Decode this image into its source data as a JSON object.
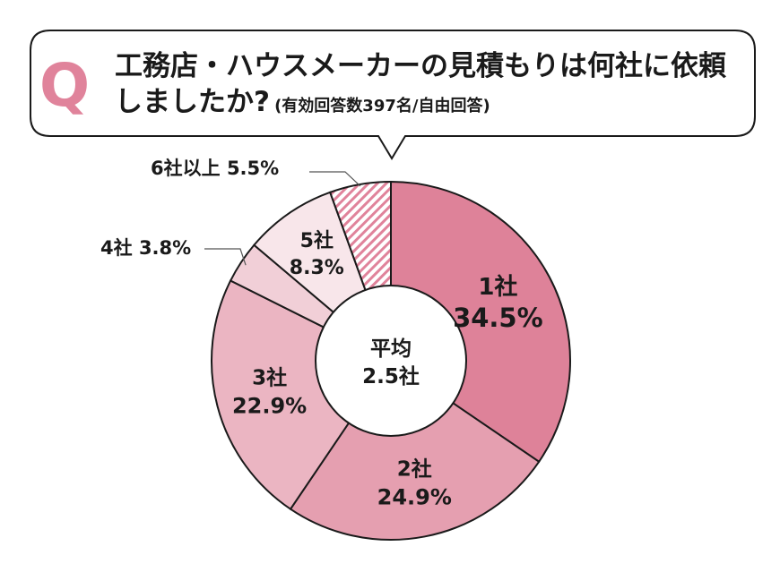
{
  "question": {
    "marker": "Q",
    "line1": "工務店・ハウスメーカーの見積もりは何社に依頼",
    "line2": "しましたか?",
    "note": "(有効回答数397名/自由回答)"
  },
  "center": {
    "label": "平均",
    "value": "2.5社"
  },
  "colors": {
    "marker": "#e0839b",
    "outline": "#1a1a1a"
  },
  "chart_data": {
    "type": "pie",
    "unit": "%",
    "slices": [
      {
        "label": "1社",
        "value": 34.5,
        "value_text": "34.5%",
        "color": "#de8299",
        "pattern": "none"
      },
      {
        "label": "2社",
        "value": 24.9,
        "value_text": "24.9%",
        "color": "#e59fb0",
        "pattern": "none"
      },
      {
        "label": "3社",
        "value": 22.9,
        "value_text": "22.9%",
        "color": "#ebb5c2",
        "pattern": "none"
      },
      {
        "label": "4社",
        "value": 3.8,
        "value_text": "3.8%",
        "color": "#f1cfd7",
        "pattern": "none"
      },
      {
        "label": "5社",
        "value": 8.3,
        "value_text": "8.3%",
        "color": "#f8e6ea",
        "pattern": "none"
      },
      {
        "label": "6社以上",
        "value": 5.5,
        "value_text": "5.5%",
        "color": "#e0839b",
        "pattern": "diagonal-stripes"
      }
    ]
  }
}
